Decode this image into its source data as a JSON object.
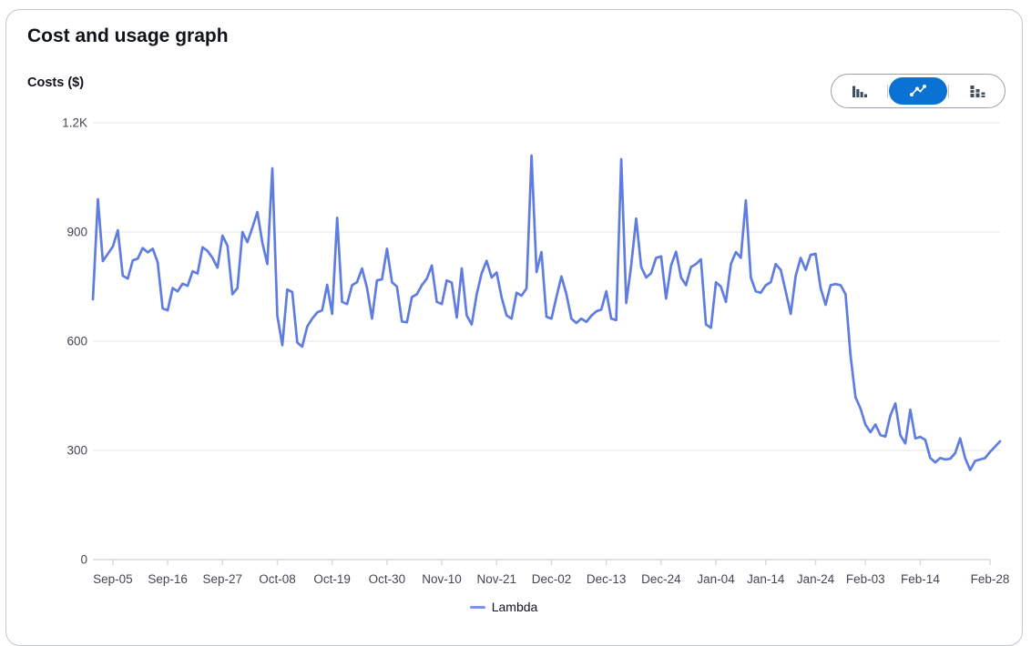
{
  "card": {
    "title": "Cost and usage graph"
  },
  "toolbar": {
    "selected_color": "#0972d3",
    "icon_color": "#414d5c",
    "options": [
      {
        "id": "bar",
        "icon": "bar-chart-icon",
        "selected": false
      },
      {
        "id": "line",
        "icon": "line-chart-icon",
        "selected": true
      },
      {
        "id": "stacked-bar",
        "icon": "stacked-bar-chart-icon",
        "selected": false
      }
    ]
  },
  "chart_data": {
    "type": "line",
    "title": "Cost and usage graph",
    "ylabel": "Costs ($)",
    "xlabel": "",
    "ylim": [
      0,
      1200
    ],
    "grid": true,
    "legend_position": "bottom",
    "grid_color": "#e9eaee",
    "axis_color": "#d6d9de",
    "label_color": "#424650",
    "y_ticks": [
      {
        "label": "0",
        "value": 0
      },
      {
        "label": "300",
        "value": 300
      },
      {
        "label": "600",
        "value": 600
      },
      {
        "label": "900",
        "value": 900
      },
      {
        "label": "1.2K",
        "value": 1200
      }
    ],
    "x_ticks": [
      {
        "label": "Sep-05",
        "index": 4
      },
      {
        "label": "Sep-16",
        "index": 15
      },
      {
        "label": "Sep-27",
        "index": 26
      },
      {
        "label": "Oct-08",
        "index": 37
      },
      {
        "label": "Oct-19",
        "index": 48
      },
      {
        "label": "Oct-30",
        "index": 59
      },
      {
        "label": "Nov-10",
        "index": 70
      },
      {
        "label": "Nov-21",
        "index": 81
      },
      {
        "label": "Dec-02",
        "index": 92
      },
      {
        "label": "Dec-13",
        "index": 103
      },
      {
        "label": "Dec-24",
        "index": 114
      },
      {
        "label": "Jan-04",
        "index": 125
      },
      {
        "label": "Jan-14",
        "index": 135
      },
      {
        "label": "Jan-24",
        "index": 145
      },
      {
        "label": "Feb-03",
        "index": 155
      },
      {
        "label": "Feb-14",
        "index": 166
      },
      {
        "label": "Feb-28",
        "index": 180
      }
    ],
    "series": [
      {
        "name": "Lambda",
        "color": "#5f7de0",
        "values": [
          715,
          990,
          820,
          840,
          860,
          905,
          780,
          772,
          822,
          827,
          856,
          844,
          854,
          817,
          690,
          685,
          746,
          737,
          758,
          752,
          792,
          786,
          858,
          848,
          829,
          802,
          890,
          862,
          729,
          746,
          900,
          872,
          912,
          955,
          870,
          812,
          1075,
          670,
          589,
          742,
          735,
          596,
          585,
          640,
          662,
          679,
          685,
          755,
          675,
          939,
          708,
          702,
          754,
          762,
          800,
          746,
          662,
          767,
          770,
          854,
          762,
          750,
          654,
          652,
          721,
          729,
          754,
          772,
          808,
          708,
          702,
          767,
          761,
          665,
          800,
          671,
          646,
          729,
          787,
          821,
          775,
          789,
          721,
          671,
          662,
          733,
          725,
          745,
          1110,
          790,
          845,
          667,
          662,
          721,
          778,
          729,
          662,
          650,
          662,
          653,
          670,
          682,
          687,
          737,
          662,
          658,
          1100,
          705,
          808,
          937,
          804,
          775,
          787,
          829,
          833,
          717,
          808,
          846,
          775,
          754,
          804,
          812,
          825,
          646,
          637,
          762,
          750,
          708,
          812,
          845,
          829,
          987,
          775,
          737,
          733,
          754,
          762,
          812,
          796,
          737,
          675,
          779,
          829,
          796,
          837,
          840,
          746,
          700,
          754,
          757,
          754,
          729,
          562,
          446,
          415,
          371,
          350,
          371,
          342,
          338,
          396,
          429,
          342,
          319,
          412,
          333,
          337,
          329,
          279,
          267,
          279,
          275,
          277,
          292,
          333,
          279,
          246,
          271,
          275,
          279,
          296,
          310,
          325
        ]
      }
    ]
  }
}
